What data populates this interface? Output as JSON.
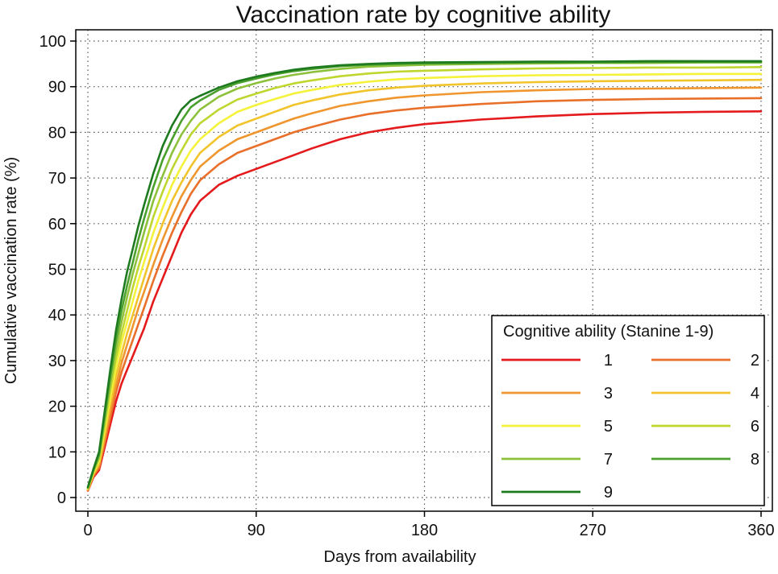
{
  "chart_data": {
    "type": "line",
    "title": "Vaccination rate by cognitive ability",
    "xlabel": "Days from availability",
    "ylabel": "Cumulative vaccination rate (%)",
    "xlim": [
      0,
      360
    ],
    "ylim": [
      0,
      100
    ],
    "xticks": [
      0,
      90,
      180,
      270,
      360
    ],
    "yticks": [
      0,
      10,
      20,
      30,
      40,
      50,
      60,
      70,
      80,
      90,
      100
    ],
    "grid": "dotted",
    "legend": {
      "title": "Cognitive ability (Stanine 1-9)",
      "placement": "bottom-right",
      "columns": 2
    },
    "x": [
      0,
      3,
      6,
      9,
      12,
      15,
      18,
      21,
      24,
      27,
      30,
      35,
      40,
      45,
      50,
      55,
      60,
      70,
      80,
      90,
      100,
      110,
      120,
      135,
      150,
      165,
      180,
      210,
      240,
      270,
      300,
      330,
      360
    ],
    "series": [
      {
        "name": "1",
        "color": "#e41a1c",
        "values": [
          1.5,
          4.5,
          6.0,
          11.0,
          16.0,
          21.0,
          25.0,
          28.0,
          31.0,
          34.0,
          37.0,
          43.0,
          48.0,
          53.0,
          58.0,
          62.0,
          65.0,
          68.5,
          70.5,
          72.0,
          73.5,
          75.0,
          76.5,
          78.5,
          80.0,
          81.0,
          81.8,
          82.8,
          83.5,
          84.0,
          84.3,
          84.5,
          84.6
        ]
      },
      {
        "name": "2",
        "color": "#e8702a",
        "values": [
          1.6,
          4.8,
          6.5,
          12.0,
          17.5,
          23.0,
          27.5,
          31.0,
          34.5,
          38.0,
          41.5,
          47.5,
          53.0,
          58.0,
          62.5,
          66.5,
          69.5,
          73.0,
          75.5,
          77.0,
          78.5,
          80.0,
          81.2,
          82.8,
          84.0,
          84.8,
          85.4,
          86.2,
          86.8,
          87.1,
          87.3,
          87.4,
          87.5
        ]
      },
      {
        "name": "3",
        "color": "#f0962f",
        "values": [
          1.7,
          5.0,
          7.0,
          13.0,
          19.0,
          24.5,
          29.5,
          33.5,
          37.5,
          41.5,
          45.0,
          51.0,
          56.5,
          61.5,
          66.0,
          69.5,
          72.5,
          76.0,
          78.5,
          80.0,
          81.5,
          83.0,
          84.2,
          85.8,
          86.8,
          87.6,
          88.1,
          88.8,
          89.2,
          89.5,
          89.6,
          89.7,
          89.8
        ]
      },
      {
        "name": "4",
        "color": "#f2c42c",
        "values": [
          1.8,
          5.2,
          7.5,
          14.0,
          20.5,
          26.5,
          31.5,
          36.0,
          40.0,
          44.0,
          48.0,
          54.5,
          60.0,
          65.0,
          69.0,
          72.5,
          75.5,
          79.0,
          81.5,
          83.0,
          84.5,
          86.0,
          87.0,
          88.3,
          89.2,
          89.8,
          90.2,
          90.7,
          91.0,
          91.2,
          91.3,
          91.4,
          91.5
        ]
      },
      {
        "name": "5",
        "color": "#f4f23a",
        "values": [
          1.9,
          5.5,
          8.0,
          15.0,
          22.0,
          28.5,
          34.0,
          38.5,
          43.0,
          47.5,
          51.5,
          58.0,
          63.5,
          68.5,
          72.5,
          76.0,
          78.5,
          82.0,
          84.5,
          86.0,
          87.3,
          88.5,
          89.3,
          90.4,
          91.1,
          91.6,
          91.9,
          92.3,
          92.5,
          92.6,
          92.7,
          92.8,
          92.8
        ]
      },
      {
        "name": "6",
        "color": "#bfd62f",
        "values": [
          2.0,
          5.7,
          8.5,
          16.0,
          23.5,
          30.5,
          36.0,
          41.0,
          46.0,
          50.5,
          54.5,
          61.5,
          67.0,
          72.0,
          76.0,
          79.5,
          82.0,
          85.0,
          87.2,
          88.5,
          89.7,
          90.7,
          91.4,
          92.3,
          92.9,
          93.3,
          93.5,
          93.8,
          94.0,
          94.1,
          94.2,
          94.2,
          94.3
        ]
      },
      {
        "name": "7",
        "color": "#8dc13c",
        "values": [
          2.1,
          5.9,
          9.0,
          17.0,
          25.0,
          32.5,
          38.5,
          44.0,
          49.0,
          53.5,
          58.0,
          65.0,
          70.5,
          75.5,
          79.5,
          82.5,
          85.0,
          87.8,
          89.6,
          90.8,
          91.8,
          92.6,
          93.2,
          93.9,
          94.4,
          94.6,
          94.8,
          95.0,
          95.1,
          95.2,
          95.2,
          95.3,
          95.3
        ]
      },
      {
        "name": "8",
        "color": "#4aa02c",
        "values": [
          2.2,
          6.1,
          9.5,
          18.0,
          26.5,
          34.5,
          41.0,
          46.5,
          51.5,
          56.5,
          61.0,
          68.0,
          74.0,
          78.5,
          82.5,
          85.5,
          87.0,
          89.3,
          90.8,
          91.8,
          92.7,
          93.4,
          93.9,
          94.5,
          94.8,
          95.0,
          95.1,
          95.2,
          95.3,
          95.3,
          95.4,
          95.4,
          95.4
        ]
      },
      {
        "name": "9",
        "color": "#1e7a1e",
        "values": [
          2.3,
          6.3,
          10.0,
          19.0,
          28.0,
          36.5,
          43.5,
          49.5,
          54.5,
          59.5,
          64.0,
          71.0,
          77.0,
          81.5,
          85.0,
          87.0,
          88.0,
          89.8,
          91.2,
          92.2,
          93.0,
          93.7,
          94.2,
          94.7,
          95.0,
          95.2,
          95.3,
          95.4,
          95.5,
          95.5,
          95.6,
          95.6,
          95.6
        ]
      }
    ]
  }
}
